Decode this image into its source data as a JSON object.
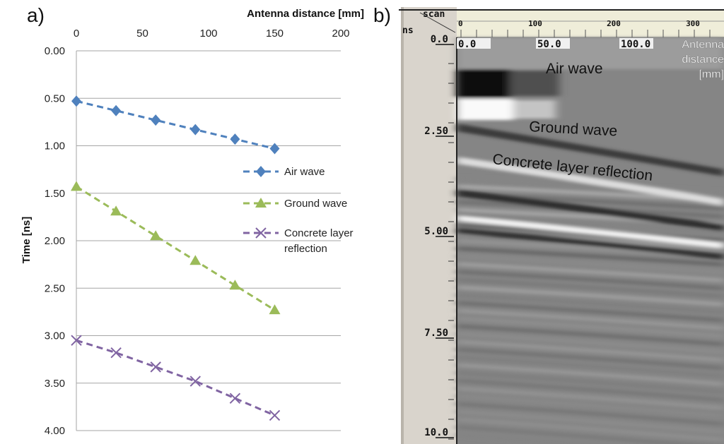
{
  "panel_labels": {
    "a": "a)",
    "b": "b)"
  },
  "chart_data": [
    {
      "type": "line",
      "panel": "a)",
      "xlabel": "Antenna distance [mm]",
      "ylabel": "Time [ns]",
      "xlim": [
        0,
        200
      ],
      "ylim": [
        0,
        4
      ],
      "y_inverted": true,
      "x_axis_position": "top",
      "xticks": [
        "0",
        "50",
        "100",
        "150",
        "200"
      ],
      "yticks": [
        "0.00",
        "0.50",
        "1.00",
        "1.50",
        "2.00",
        "2.50",
        "3.00",
        "3.50",
        "4.00"
      ],
      "grid": "horizontal",
      "legend_position": "right",
      "x": [
        0,
        30,
        60,
        90,
        120,
        150
      ],
      "series": [
        {
          "name": "Air wave",
          "marker": "diamond",
          "color": "#4f81bd",
          "values": [
            0.53,
            0.63,
            0.73,
            0.83,
            0.93,
            1.03
          ]
        },
        {
          "name": "Ground wave",
          "marker": "triangle",
          "color": "#9bbb59",
          "values": [
            1.43,
            1.69,
            1.95,
            2.21,
            2.47,
            2.73
          ]
        },
        {
          "name": "Concrete layer reflection",
          "marker": "x",
          "color": "#8064a2",
          "values": [
            3.05,
            3.18,
            3.33,
            3.48,
            3.66,
            3.84
          ]
        }
      ]
    },
    {
      "type": "heatmap",
      "panel": "b)",
      "colormap": "grayscale",
      "top_axis_title": "scan",
      "left_axis_title": "ns",
      "scan_ticks": [
        "0",
        "100",
        "200",
        "300"
      ],
      "distance_ticks": [
        "0.0",
        "50.0",
        "100.0"
      ],
      "distance_axis_label": [
        "Antenna",
        "distance",
        "[mm]"
      ],
      "time_ticks": [
        "0.0",
        "2.50",
        "5.00",
        "7.50",
        "10.0"
      ],
      "annotations": [
        "Air wave",
        "Ground wave",
        "Concrete layer reflection"
      ]
    }
  ]
}
